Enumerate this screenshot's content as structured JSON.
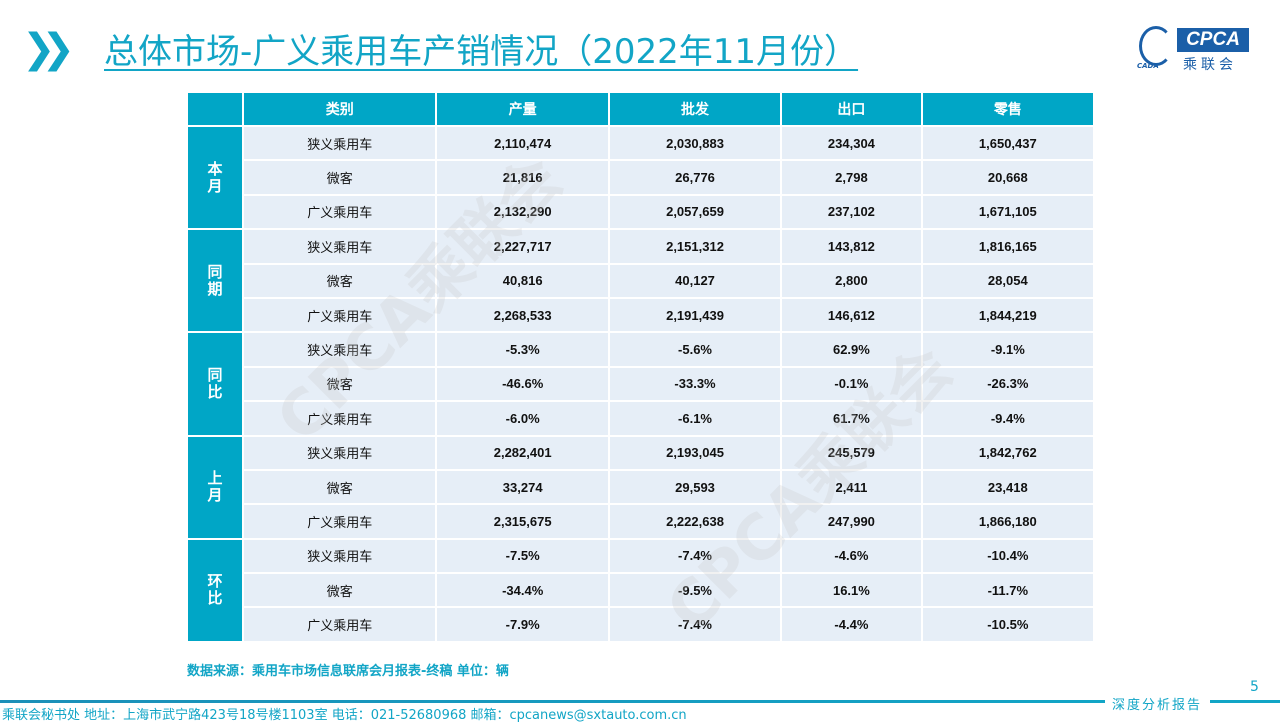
{
  "header": {
    "title": "总体市场-广义乘用车产销情况（2022年11月份）",
    "logo_text": "CPCA",
    "logo_cn": "乘联会",
    "logo_small": "CADA"
  },
  "table": {
    "columns": [
      "",
      "类别",
      "产量",
      "批发",
      "出口",
      "零售"
    ],
    "groups": [
      {
        "label": "本月",
        "rows": [
          [
            "狭义乘用车",
            "2,110,474",
            "2,030,883",
            "234,304",
            "1,650,437"
          ],
          [
            "微客",
            "21,816",
            "26,776",
            "2,798",
            "20,668"
          ],
          [
            "广义乘用车",
            "2,132,290",
            "2,057,659",
            "237,102",
            "1,671,105"
          ]
        ]
      },
      {
        "label": "同期",
        "rows": [
          [
            "狭义乘用车",
            "2,227,717",
            "2,151,312",
            "143,812",
            "1,816,165"
          ],
          [
            "微客",
            "40,816",
            "40,127",
            "2,800",
            "28,054"
          ],
          [
            "广义乘用车",
            "2,268,533",
            "2,191,439",
            "146,612",
            "1,844,219"
          ]
        ]
      },
      {
        "label": "同比",
        "rows": [
          [
            "狭义乘用车",
            "-5.3%",
            "-5.6%",
            "62.9%",
            "-9.1%"
          ],
          [
            "微客",
            "-46.6%",
            "-33.3%",
            "-0.1%",
            "-26.3%"
          ],
          [
            "广义乘用车",
            "-6.0%",
            "-6.1%",
            "61.7%",
            "-9.4%"
          ]
        ]
      },
      {
        "label": "上月",
        "rows": [
          [
            "狭义乘用车",
            "2,282,401",
            "2,193,045",
            "245,579",
            "1,842,762"
          ],
          [
            "微客",
            "33,274",
            "29,593",
            "2,411",
            "23,418"
          ],
          [
            "广义乘用车",
            "2,315,675",
            "2,222,638",
            "247,990",
            "1,866,180"
          ]
        ]
      },
      {
        "label": "环比",
        "rows": [
          [
            "狭义乘用车",
            "-7.5%",
            "-7.4%",
            "-4.6%",
            "-10.4%"
          ],
          [
            "微客",
            "-34.4%",
            "-9.5%",
            "16.1%",
            "-11.7%"
          ],
          [
            "广义乘用车",
            "-7.9%",
            "-7.4%",
            "-4.4%",
            "-10.5%"
          ]
        ]
      }
    ]
  },
  "watermark": "CPCA乘联会",
  "source": "数据来源：乘用车市场信息联席会月报表-终稿    单位：辆",
  "page_number": "5",
  "footer_tag": "深度分析报告",
  "footer": "乘联会秘书处   地址：上海市武宁路423号18号楼1103室  电话：021-52680968   邮箱：cpcanews@sxtauto.com.cn",
  "colors": {
    "accent": "#00a6c6",
    "row_bg": "#e6eef7",
    "logo_blue": "#1b5fa8"
  }
}
